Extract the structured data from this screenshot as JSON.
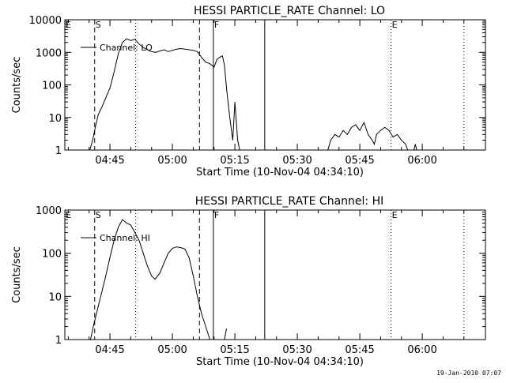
{
  "footer_timestamp": "19-Jan-2010 07:07",
  "chart_data": [
    {
      "type": "line",
      "title": "HESSI PARTICLE_RATE Channel: LO",
      "xlabel": "Start Time (10-Nov-04 04:34:10)",
      "ylabel": "Counts/sec",
      "x_ticks": [
        "04:45",
        "05:00",
        "05:15",
        "05:30",
        "05:45",
        "06:00"
      ],
      "y_scale": "log",
      "y_ticks": [
        "1",
        "10",
        "100",
        "1000",
        "10000"
      ],
      "ylim": [
        1,
        10000
      ],
      "xlim": [
        "04:34:10",
        "06:15:10"
      ],
      "legend": "Channel: LO",
      "markers": [
        {
          "label": "E",
          "time": "04:34:10",
          "style": "dotted"
        },
        {
          "label": "S",
          "time": "04:41:20",
          "style": "dashed"
        },
        {
          "label": "",
          "time": "04:51:10",
          "style": "dotted"
        },
        {
          "label": "",
          "time": "05:06:30",
          "style": "dashed"
        },
        {
          "label": "F",
          "time": "05:09:50",
          "style": "solid"
        },
        {
          "label": "",
          "time": "05:22:10",
          "style": "solid"
        },
        {
          "label": "E",
          "time": "05:52:30",
          "style": "dotted"
        },
        {
          "label": "",
          "time": "06:10:00",
          "style": "dotted"
        }
      ],
      "series": [
        {
          "points": [
            [
              "04:40:10",
              1
            ],
            [
              "04:40:50",
              2
            ],
            [
              "04:41:30",
              5
            ],
            [
              "04:42:10",
              12
            ],
            [
              "04:43:00",
              20
            ],
            [
              "04:44:00",
              40
            ],
            [
              "04:45:00",
              80
            ],
            [
              "04:46:00",
              250
            ],
            [
              "04:47:00",
              900
            ],
            [
              "04:48:00",
              2000
            ],
            [
              "04:49:00",
              2600
            ],
            [
              "04:50:00",
              2300
            ],
            [
              "04:51:00",
              2500
            ],
            [
              "04:52:00",
              1800
            ],
            [
              "04:53:00",
              1400
            ],
            [
              "04:54:00",
              1200
            ],
            [
              "04:55:00",
              1050
            ],
            [
              "04:56:00",
              1000
            ],
            [
              "04:57:00",
              1100
            ],
            [
              "04:58:00",
              1200
            ],
            [
              "04:59:00",
              1050
            ],
            [
              "05:00:00",
              1150
            ],
            [
              "05:01:00",
              1250
            ],
            [
              "05:02:00",
              1300
            ],
            [
              "05:03:00",
              1250
            ],
            [
              "05:04:00",
              1200
            ],
            [
              "05:05:00",
              1150
            ],
            [
              "05:06:00",
              1050
            ],
            [
              "05:07:00",
              700
            ],
            [
              "05:08:00",
              500
            ],
            [
              "05:09:00",
              450
            ],
            [
              "05:10:00",
              350
            ],
            [
              "05:10:40",
              600
            ],
            [
              "05:11:20",
              700
            ],
            [
              "05:12:00",
              780
            ],
            [
              "05:12:30",
              400
            ],
            [
              "05:13:00",
              80
            ],
            [
              "05:13:30",
              20
            ],
            [
              "05:14:00",
              6
            ],
            [
              "05:14:30",
              2
            ],
            [
              "05:15:00",
              30
            ],
            [
              "05:15:20",
              8
            ],
            [
              "05:15:40",
              2
            ],
            [
              "05:16:10",
              1
            ]
          ]
        },
        {
          "points": [
            [
              "05:37:20",
              1
            ],
            [
              "05:38:00",
              2
            ],
            [
              "05:39:00",
              3
            ],
            [
              "05:40:00",
              2.5
            ],
            [
              "05:41:00",
              4
            ],
            [
              "05:42:00",
              3
            ],
            [
              "05:43:00",
              5
            ],
            [
              "05:44:00",
              6
            ],
            [
              "05:45:00",
              4
            ],
            [
              "05:46:00",
              7
            ],
            [
              "05:47:00",
              3
            ],
            [
              "05:48:00",
              2
            ],
            [
              "05:48:30",
              1.5
            ],
            [
              "05:49:00",
              3
            ],
            [
              "05:50:00",
              4
            ],
            [
              "05:51:00",
              5
            ],
            [
              "05:52:00",
              4
            ],
            [
              "05:53:00",
              2.5
            ],
            [
              "05:54:00",
              3
            ],
            [
              "05:55:00",
              2
            ],
            [
              "05:56:00",
              1.5
            ],
            [
              "05:56:30",
              1
            ]
          ]
        },
        {
          "points": [
            [
              "05:58:00",
              1
            ],
            [
              "05:58:20",
              1.5
            ],
            [
              "05:58:40",
              1
            ]
          ]
        }
      ]
    },
    {
      "type": "line",
      "title": "HESSI PARTICLE_RATE Channel: HI",
      "xlabel": "Start Time (10-Nov-04 04:34:10)",
      "ylabel": "Counts/sec",
      "x_ticks": [
        "04:45",
        "05:00",
        "05:15",
        "05:30",
        "05:45",
        "06:00"
      ],
      "y_scale": "log",
      "y_ticks": [
        "1",
        "10",
        "100",
        "1000"
      ],
      "ylim": [
        1,
        1000
      ],
      "xlim": [
        "04:34:10",
        "06:15:10"
      ],
      "legend": "Channel: HI",
      "markers": [
        {
          "label": "E",
          "time": "04:34:10",
          "style": "dotted"
        },
        {
          "label": "S",
          "time": "04:41:20",
          "style": "dashed"
        },
        {
          "label": "",
          "time": "04:51:10",
          "style": "dotted"
        },
        {
          "label": "",
          "time": "05:06:30",
          "style": "dashed"
        },
        {
          "label": "F",
          "time": "05:09:50",
          "style": "solid"
        },
        {
          "label": "",
          "time": "05:22:10",
          "style": "solid"
        },
        {
          "label": "E",
          "time": "05:52:30",
          "style": "dotted"
        },
        {
          "label": "",
          "time": "06:10:00",
          "style": "dotted"
        }
      ],
      "series": [
        {
          "points": [
            [
              "04:40:20",
              1
            ],
            [
              "04:41:00",
              2
            ],
            [
              "04:42:00",
              5
            ],
            [
              "04:43:00",
              12
            ],
            [
              "04:44:00",
              30
            ],
            [
              "04:45:00",
              80
            ],
            [
              "04:46:00",
              200
            ],
            [
              "04:47:00",
              400
            ],
            [
              "04:48:00",
              600
            ],
            [
              "04:49:00",
              500
            ],
            [
              "04:50:00",
              450
            ],
            [
              "04:51:00",
              300
            ],
            [
              "04:52:00",
              200
            ],
            [
              "04:53:00",
              100
            ],
            [
              "04:54:00",
              50
            ],
            [
              "04:55:00",
              30
            ],
            [
              "04:55:50",
              25
            ],
            [
              "04:57:00",
              35
            ],
            [
              "04:58:00",
              60
            ],
            [
              "04:59:00",
              100
            ],
            [
              "05:00:00",
              130
            ],
            [
              "05:01:00",
              140
            ],
            [
              "05:02:00",
              135
            ],
            [
              "05:03:00",
              125
            ],
            [
              "05:04:00",
              80
            ],
            [
              "05:05:00",
              30
            ],
            [
              "05:06:00",
              10
            ],
            [
              "05:07:00",
              4
            ],
            [
              "05:08:00",
              2
            ],
            [
              "05:09:00",
              1
            ]
          ]
        },
        {
          "points": [
            [
              "05:12:30",
              1
            ],
            [
              "05:13:00",
              1.8
            ]
          ]
        }
      ]
    }
  ]
}
